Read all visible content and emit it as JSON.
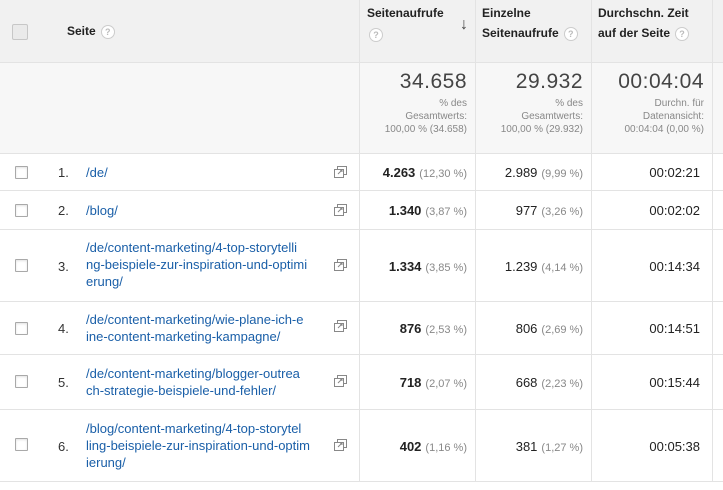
{
  "columns": {
    "page": "Seite",
    "pageviews_line1": "Seitenaufrufe",
    "unique_line1": "Einzelne",
    "unique_line2": "Seitenaufrufe",
    "time_line1": "Durchschn. Zeit",
    "time_line2": "auf der Seite",
    "help_glyph": "?",
    "sort_glyph": "↓"
  },
  "summary": {
    "pageviews": {
      "value": "34.658",
      "line1": "% des",
      "line2": "Gesamtwerts:",
      "line3": "100,00 % (34.658)"
    },
    "unique": {
      "value": "29.932",
      "line1": "% des",
      "line2": "Gesamtwerts:",
      "line3": "100,00 % (29.932)"
    },
    "time": {
      "value": "00:04:04",
      "line1": "Durchn. für",
      "line2": "Datenansicht:",
      "line3": "00:04:04 (0,00 %)"
    }
  },
  "rows": [
    {
      "num": "1.",
      "page": "/de/",
      "pageviews": "4.263",
      "pageviews_pct": "(12,30 %)",
      "unique": "2.989",
      "unique_pct": "(9,99 %)",
      "time": "00:02:21"
    },
    {
      "num": "2.",
      "page": "/blog/",
      "pageviews": "1.340",
      "pageviews_pct": "(3,87 %)",
      "unique": "977",
      "unique_pct": "(3,26 %)",
      "time": "00:02:02"
    },
    {
      "num": "3.",
      "page_l1": "/de/content-marketing/4-top-storytelli",
      "page_l2": "ng-beispiele-zur-inspiration-und-optimi",
      "page_l3": "erung/",
      "pageviews": "1.334",
      "pageviews_pct": "(3,85 %)",
      "unique": "1.239",
      "unique_pct": "(4,14 %)",
      "time": "00:14:34"
    },
    {
      "num": "4.",
      "page_l1": "/de/content-marketing/wie-plane-ich-e",
      "page_l2": "ine-content-marketing-kampagne/",
      "pageviews": "876",
      "pageviews_pct": "(2,53 %)",
      "unique": "806",
      "unique_pct": "(2,69 %)",
      "time": "00:14:51"
    },
    {
      "num": "5.",
      "page_l1": "/de/content-marketing/blogger-outrea",
      "page_l2": "ch-strategie-beispiele-und-fehler/",
      "pageviews": "718",
      "pageviews_pct": "(2,07 %)",
      "unique": "668",
      "unique_pct": "(2,23 %)",
      "time": "00:15:44"
    },
    {
      "num": "6.",
      "page_l1": "/blog/content-marketing/4-top-storytel",
      "page_l2": "ling-beispiele-zur-inspiration-und-optim",
      "page_l3": "ierung/",
      "pageviews": "402",
      "pageviews_pct": "(1,16 %)",
      "unique": "381",
      "unique_pct": "(1,27 %)",
      "time": "00:05:38"
    }
  ]
}
